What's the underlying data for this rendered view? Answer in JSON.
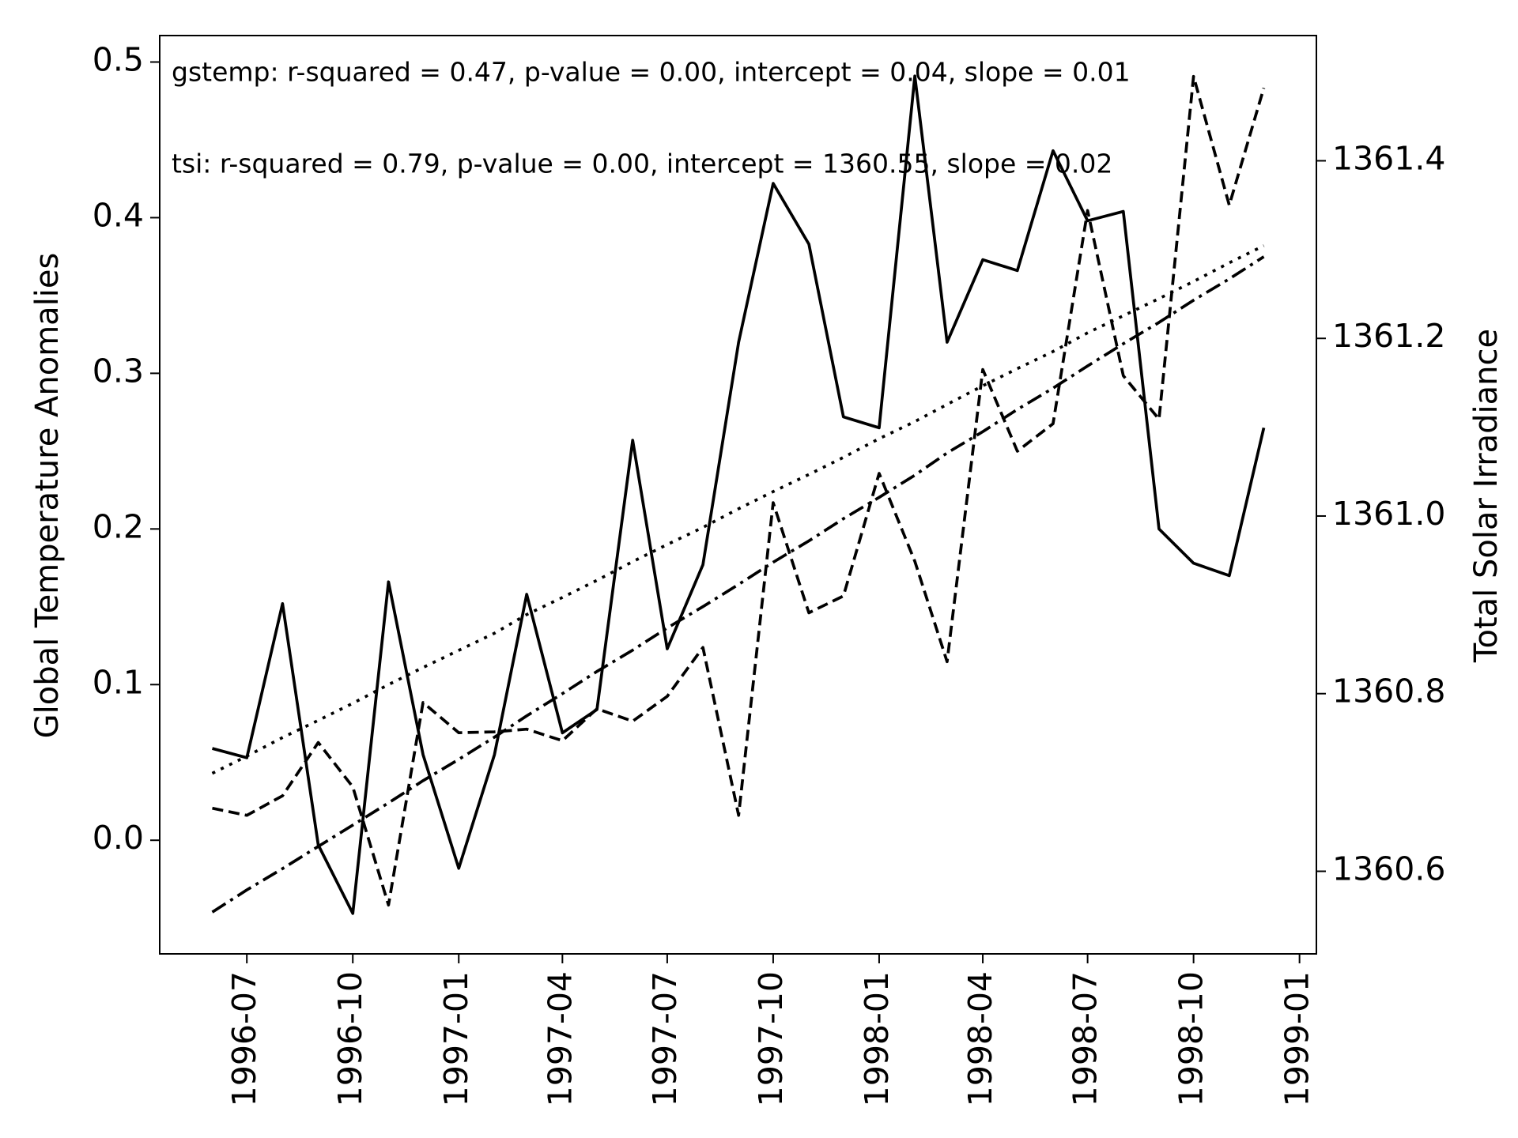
{
  "chart_data": {
    "type": "line",
    "x": [
      "1996-06",
      "1996-07",
      "1996-08",
      "1996-09",
      "1996-10",
      "1996-11",
      "1996-12",
      "1997-01",
      "1997-02",
      "1997-03",
      "1997-04",
      "1997-05",
      "1997-06",
      "1997-07",
      "1997-08",
      "1997-09",
      "1997-10",
      "1997-11",
      "1997-12",
      "1998-01",
      "1998-02",
      "1998-03",
      "1998-04",
      "1998-05",
      "1998-06",
      "1998-07",
      "1998-08",
      "1998-09",
      "1998-10",
      "1998-11",
      "1998-12"
    ],
    "ylabel": "Global Temperature Anomalies",
    "y2label": "Total Solar Irradiance",
    "annotations": [
      "gstemp: r-squared = 0.47, p-value = 0.00, intercept = 0.04, slope = 0.01",
      "tsi: r-squared = 0.79, p-value = 0.00, intercept = 1360.55, slope = 0.02"
    ],
    "series": [
      {
        "color": "#000000",
        "style": "solid",
        "axis": "y",
        "values": [
          0.059,
          0.053,
          0.152,
          -0.003,
          -0.047,
          0.166,
          0.055,
          -0.018,
          0.055,
          0.158,
          0.069,
          0.084,
          0.257,
          0.123,
          0.177,
          0.32,
          0.422,
          0.383,
          0.272,
          0.265,
          0.491,
          0.32,
          0.373,
          0.366,
          0.443,
          0.398,
          0.404,
          0.2,
          0.178,
          0.17,
          0.265
        ]
      },
      {
        "color": "#000000",
        "style": "dotted",
        "axis": "y",
        "values": [
          0.043,
          0.054,
          0.066,
          0.077,
          0.088,
          0.1,
          0.111,
          0.122,
          0.133,
          0.145,
          0.156,
          0.167,
          0.179,
          0.19,
          0.201,
          0.213,
          0.224,
          0.235,
          0.246,
          0.258,
          0.269,
          0.28,
          0.292,
          0.303,
          0.314,
          0.326,
          0.337,
          0.348,
          0.359,
          0.371,
          0.382
        ]
      },
      {
        "color": "#000000",
        "style": "dashed",
        "axis": "y2",
        "values": [
          1360.671,
          1360.663,
          1360.685,
          1360.745,
          1360.695,
          1360.562,
          1360.79,
          1360.756,
          1360.757,
          1360.76,
          1360.747,
          1360.783,
          1360.769,
          1360.797,
          1360.852,
          1360.663,
          1361.015,
          1360.891,
          1360.91,
          1361.048,
          1360.949,
          1360.836,
          1361.165,
          1361.073,
          1361.104,
          1361.344,
          1361.158,
          1361.109,
          1361.495,
          1361.35,
          1361.482
        ]
      },
      {
        "color": "#000000",
        "style": "dashdot",
        "axis": "y2",
        "values": [
          1360.554,
          1360.579,
          1360.603,
          1360.628,
          1360.652,
          1360.677,
          1360.702,
          1360.726,
          1360.751,
          1360.775,
          1360.8,
          1360.825,
          1360.849,
          1360.874,
          1360.898,
          1360.923,
          1360.948,
          1360.972,
          1360.997,
          1361.021,
          1361.046,
          1361.071,
          1361.095,
          1361.12,
          1361.144,
          1361.169,
          1361.194,
          1361.218,
          1361.243,
          1361.267,
          1361.292
        ]
      }
    ],
    "xticks": [
      "1996-07",
      "1996-10",
      "1997-01",
      "1997-04",
      "1997-07",
      "1997-10",
      "1998-01",
      "1998-04",
      "1998-07",
      "1998-10",
      "1999-01"
    ],
    "ylim": [
      -0.073,
      0.517
    ],
    "yticks": [
      {
        "value": 0,
        "label": "0.0"
      },
      0.1,
      0.2,
      0.3,
      0.4,
      0.5
    ],
    "y2lim": [
      1360.507,
      1361.541
    ],
    "y2ticks": [
      1360.6,
      1360.8,
      {
        "value": 1361,
        "label": "1361.0"
      },
      1361.2,
      1361.4
    ]
  }
}
